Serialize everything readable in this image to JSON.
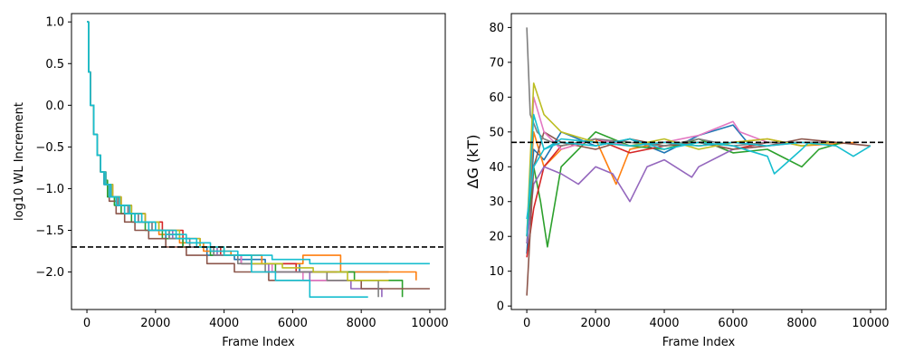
{
  "chart_data": [
    {
      "type": "line",
      "title": "",
      "xlabel": "Frame Index",
      "ylabel": "log10 WL Increment",
      "xlim": [
        -450,
        10450
      ],
      "ylim": [
        -2.45,
        1.1
      ],
      "xticks": [
        0,
        2000,
        4000,
        6000,
        8000,
        10000
      ],
      "yticks": [
        1.0,
        0.5,
        0.0,
        -0.5,
        -1.0,
        -1.5,
        -2.0
      ],
      "xtick_labels": [
        "0",
        "2000",
        "4000",
        "6000",
        "8000",
        "10000"
      ],
      "ytick_labels": [
        "1.0",
        "0.5",
        "0.0",
        "−0.5",
        "−1.0",
        "−1.5",
        "−2.0"
      ],
      "hline": {
        "y": -1.7,
        "style": "dashed",
        "color": "#000000"
      },
      "grid": false,
      "legend": "none",
      "series": [
        {
          "color": "#1f77b4",
          "x": [
            0,
            50,
            100,
            200,
            300,
            400,
            500,
            650,
            850,
            1100,
            1400,
            1800,
            2300,
            2800,
            3500,
            4300,
            5200,
            6200,
            8800
          ],
          "y": [
            1.0,
            0.4,
            0.0,
            -0.35,
            -0.6,
            -0.8,
            -0.95,
            -1.1,
            -1.2,
            -1.3,
            -1.4,
            -1.5,
            -1.6,
            -1.7,
            -1.8,
            -1.85,
            -1.9,
            -2.0,
            -2.0
          ]
        },
        {
          "color": "#ff7f0e",
          "x": [
            0,
            50,
            100,
            200,
            300,
            400,
            550,
            700,
            950,
            1200,
            1600,
            2100,
            2700,
            3400,
            4200,
            5100,
            6300,
            7400,
            9600
          ],
          "y": [
            1.0,
            0.4,
            0.0,
            -0.35,
            -0.6,
            -0.8,
            -0.95,
            -1.1,
            -1.2,
            -1.3,
            -1.4,
            -1.55,
            -1.65,
            -1.75,
            -1.8,
            -1.9,
            -1.8,
            -2.0,
            -2.1
          ]
        },
        {
          "color": "#2ca02c",
          "x": [
            0,
            50,
            100,
            200,
            300,
            400,
            500,
            600,
            800,
            1000,
            1300,
            1700,
            2200,
            2800,
            3600,
            4500,
            5500,
            6800,
            7800,
            9200
          ],
          "y": [
            1.0,
            0.4,
            0.0,
            -0.35,
            -0.6,
            -0.8,
            -0.9,
            -1.1,
            -1.2,
            -1.3,
            -1.4,
            -1.5,
            -1.6,
            -1.7,
            -1.8,
            -1.9,
            -2.0,
            -2.0,
            -2.1,
            -2.3
          ]
        },
        {
          "color": "#d62728",
          "x": [
            0,
            50,
            100,
            200,
            300,
            400,
            550,
            750,
            1000,
            1300,
            1700,
            2200,
            2800,
            3300,
            3900,
            4500,
            5300,
            6100,
            7300
          ],
          "y": [
            1.0,
            0.4,
            0.0,
            -0.35,
            -0.6,
            -0.8,
            -0.95,
            -1.1,
            -1.2,
            -1.3,
            -1.4,
            -1.5,
            -1.6,
            -1.7,
            -1.8,
            -1.9,
            -1.9,
            -2.0,
            -2.0
          ]
        },
        {
          "color": "#9467bd",
          "x": [
            0,
            50,
            100,
            200,
            300,
            400,
            500,
            650,
            900,
            1200,
            1600,
            2000,
            2500,
            3000,
            3800,
            4500,
            5300,
            6500,
            7700,
            8600
          ],
          "y": [
            1.0,
            0.4,
            0.0,
            -0.35,
            -0.6,
            -0.8,
            -0.95,
            -1.1,
            -1.2,
            -1.3,
            -1.4,
            -1.5,
            -1.6,
            -1.7,
            -1.8,
            -1.9,
            -2.0,
            -2.1,
            -2.2,
            -2.3
          ]
        },
        {
          "color": "#8c564b",
          "x": [
            0,
            50,
            100,
            200,
            300,
            400,
            500,
            650,
            850,
            1100,
            1400,
            1800,
            2300,
            2900,
            3500,
            4300,
            5300,
            6500,
            8000,
            10000
          ],
          "y": [
            1.0,
            0.4,
            0.0,
            -0.35,
            -0.6,
            -0.8,
            -0.95,
            -1.15,
            -1.3,
            -1.4,
            -1.5,
            -1.6,
            -1.7,
            -1.8,
            -1.9,
            -2.0,
            -2.1,
            -2.1,
            -2.2,
            -2.2
          ]
        },
        {
          "color": "#e377c2",
          "x": [
            0,
            50,
            100,
            200,
            300,
            400,
            550,
            700,
            900,
            1200,
            1500,
            1900,
            2400,
            3000,
            3700,
            4500,
            5400,
            6300,
            7500
          ],
          "y": [
            1.0,
            0.4,
            0.0,
            -0.35,
            -0.6,
            -0.8,
            -0.95,
            -1.1,
            -1.2,
            -1.3,
            -1.4,
            -1.5,
            -1.6,
            -1.7,
            -1.8,
            -1.9,
            -2.0,
            -2.1,
            -2.1
          ]
        },
        {
          "color": "#7f7f7f",
          "x": [
            0,
            50,
            100,
            200,
            300,
            400,
            500,
            700,
            900,
            1200,
            1500,
            1900,
            2400,
            3000,
            3700,
            4400,
            5200,
            6100,
            7000,
            8500
          ],
          "y": [
            1.0,
            0.4,
            0.0,
            -0.35,
            -0.6,
            -0.8,
            -0.95,
            -1.1,
            -1.2,
            -1.3,
            -1.4,
            -1.5,
            -1.6,
            -1.7,
            -1.8,
            -1.9,
            -2.0,
            -2.0,
            -2.1,
            -2.3
          ]
        },
        {
          "color": "#bcbd22",
          "x": [
            0,
            50,
            100,
            200,
            300,
            400,
            550,
            750,
            1000,
            1300,
            1700,
            2100,
            2700,
            3300,
            4000,
            4800,
            5700,
            6600,
            7600,
            8800
          ],
          "y": [
            1.0,
            0.4,
            0.0,
            -0.35,
            -0.6,
            -0.8,
            -0.95,
            -1.1,
            -1.2,
            -1.3,
            -1.4,
            -1.5,
            -1.6,
            -1.7,
            -1.8,
            -1.9,
            -1.95,
            -2.0,
            -2.1,
            -2.1
          ]
        },
        {
          "color": "#17becf",
          "x": [
            0,
            50,
            100,
            200,
            300,
            400,
            550,
            700,
            950,
            1250,
            1600,
            2000,
            2600,
            3200,
            4000,
            4800,
            5500,
            6500,
            8200
          ],
          "y": [
            1.0,
            0.4,
            0.0,
            -0.35,
            -0.6,
            -0.8,
            -0.95,
            -1.1,
            -1.2,
            -1.3,
            -1.4,
            -1.5,
            -1.6,
            -1.7,
            -1.8,
            -2.0,
            -2.1,
            -2.3,
            -2.3
          ]
        },
        {
          "color": "#17becf",
          "x": [
            0,
            50,
            100,
            200,
            300,
            400,
            500,
            650,
            850,
            1100,
            1400,
            1800,
            2300,
            2900,
            3600,
            4400,
            5400,
            6500,
            7400,
            8800,
            10000
          ],
          "y": [
            1.0,
            0.4,
            0.0,
            -0.35,
            -0.6,
            -0.8,
            -0.95,
            -1.1,
            -1.2,
            -1.3,
            -1.4,
            -1.5,
            -1.55,
            -1.65,
            -1.75,
            -1.8,
            -1.85,
            -1.9,
            -1.9,
            -1.9,
            -1.9
          ]
        }
      ]
    },
    {
      "type": "line",
      "title": "",
      "xlabel": "Frame Index",
      "ylabel": "ΔG (kT)",
      "xlim": [
        -450,
        10450
      ],
      "ylim": [
        -1,
        84
      ],
      "xticks": [
        0,
        2000,
        4000,
        6000,
        8000,
        10000
      ],
      "yticks": [
        0,
        10,
        20,
        30,
        40,
        50,
        60,
        70,
        80
      ],
      "xtick_labels": [
        "0",
        "2000",
        "4000",
        "6000",
        "8000",
        "10000"
      ],
      "ytick_labels": [
        "0",
        "10",
        "20",
        "30",
        "40",
        "50",
        "60",
        "70",
        "80"
      ],
      "hline": {
        "y": 47,
        "style": "dashed",
        "color": "#000000"
      },
      "grid": false,
      "legend": "none",
      "series": [
        {
          "color": "#1f77b4",
          "x": [
            0,
            200,
            500,
            1000,
            2000,
            3000,
            4000,
            5000,
            6000,
            6500,
            7000,
            8000,
            8800
          ],
          "y": [
            15,
            45,
            42,
            50,
            46,
            48,
            44,
            49,
            52,
            46,
            47,
            47,
            47
          ]
        },
        {
          "color": "#ff7f0e",
          "x": [
            0,
            200,
            500,
            1000,
            2000,
            2600,
            3000,
            4000,
            5000,
            6000,
            7000,
            8000,
            9600
          ],
          "y": [
            20,
            50,
            40,
            45,
            48,
            35,
            45,
            47,
            46,
            47,
            48,
            46,
            47
          ]
        },
        {
          "color": "#2ca02c",
          "x": [
            0,
            200,
            400,
            600,
            1000,
            2000,
            3000,
            4000,
            5000,
            6000,
            7000,
            7600,
            8000,
            8500,
            9200
          ],
          "y": [
            18,
            40,
            30,
            17,
            40,
            50,
            46,
            45,
            48,
            44,
            45,
            42,
            40,
            45,
            47
          ]
        },
        {
          "color": "#d62728",
          "x": [
            0,
            200,
            500,
            1000,
            2000,
            3000,
            4000,
            5000,
            6000,
            7000,
            7300
          ],
          "y": [
            14,
            28,
            40,
            46,
            48,
            44,
            46,
            47,
            45,
            47,
            47
          ]
        },
        {
          "color": "#9467bd",
          "x": [
            0,
            200,
            500,
            1000,
            1500,
            2000,
            2500,
            3000,
            3500,
            4000,
            4800,
            5000,
            6000,
            7000,
            8000,
            8600
          ],
          "y": [
            18,
            35,
            40,
            38,
            35,
            40,
            38,
            30,
            40,
            42,
            37,
            40,
            45,
            46,
            47,
            47
          ]
        },
        {
          "color": "#8c564b",
          "x": [
            0,
            200,
            500,
            1000,
            2000,
            3000,
            4000,
            5000,
            6000,
            7000,
            8000,
            9000,
            10000
          ],
          "y": [
            3,
            40,
            50,
            47,
            45,
            48,
            46,
            47,
            45,
            46,
            48,
            47,
            46
          ]
        },
        {
          "color": "#e377c2",
          "x": [
            0,
            200,
            500,
            1000,
            2000,
            3000,
            4000,
            5000,
            6000,
            6200,
            7000,
            7500
          ],
          "y": [
            20,
            60,
            50,
            45,
            48,
            46,
            47,
            49,
            53,
            50,
            47,
            47
          ]
        },
        {
          "color": "#7f7f7f",
          "x": [
            0,
            100,
            300,
            500,
            1000,
            2000,
            3000,
            4000,
            5000,
            6000,
            7000,
            8000,
            8500
          ],
          "y": [
            80,
            55,
            50,
            48,
            46,
            48,
            47,
            46,
            48,
            46,
            47,
            47,
            47
          ]
        },
        {
          "color": "#bcbd22",
          "x": [
            0,
            200,
            500,
            1000,
            2000,
            3000,
            4000,
            5000,
            6000,
            7000,
            8000,
            8800
          ],
          "y": [
            20,
            64,
            55,
            50,
            47,
            46,
            48,
            45,
            47,
            48,
            46,
            47
          ]
        },
        {
          "color": "#17becf",
          "x": [
            0,
            200,
            500,
            1000,
            2000,
            3000,
            4000,
            5000,
            6000,
            7000,
            7200,
            8000,
            8200
          ],
          "y": [
            25,
            40,
            45,
            47,
            46,
            48,
            45,
            47,
            46,
            43,
            38,
            45,
            47
          ]
        },
        {
          "color": "#17becf",
          "x": [
            0,
            200,
            500,
            1000,
            2000,
            3000,
            4000,
            5000,
            6000,
            7000,
            8000,
            9000,
            9500,
            10000
          ],
          "y": [
            20,
            55,
            45,
            48,
            47,
            46,
            47,
            46,
            47,
            46,
            47,
            46,
            43,
            46
          ]
        }
      ]
    }
  ]
}
